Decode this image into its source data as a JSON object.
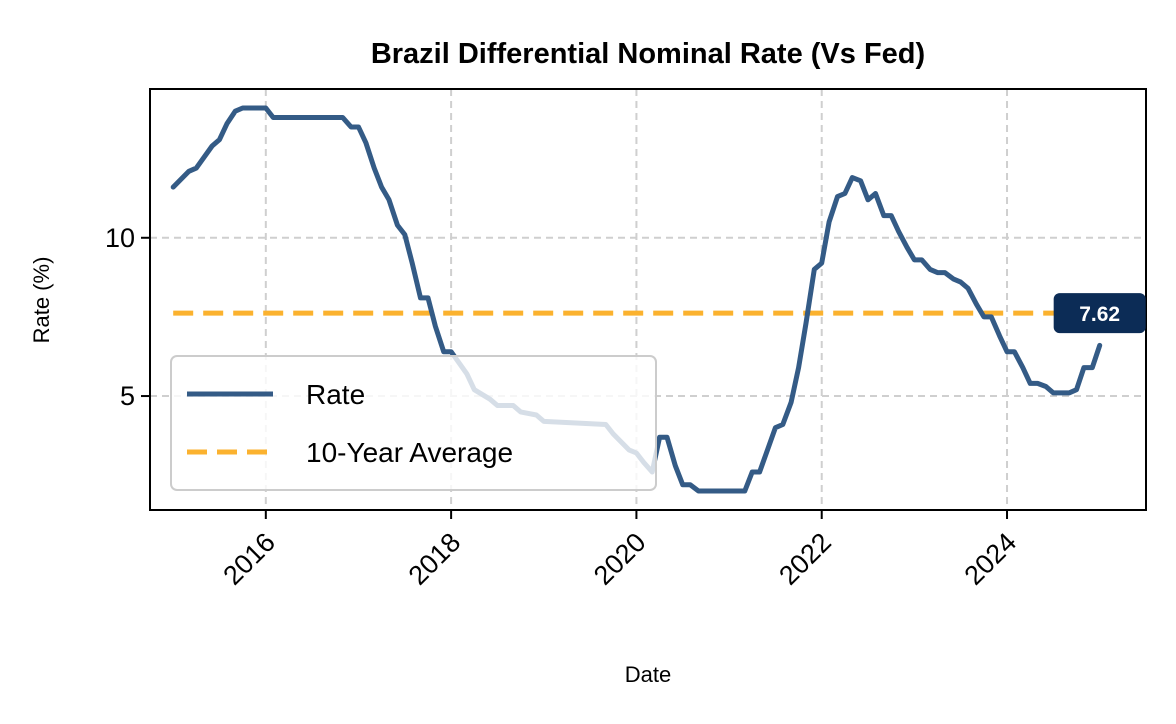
{
  "chart_data": {
    "type": "line",
    "title": "Brazil Differential Nominal Rate (Vs Fed)",
    "xlabel": "Date",
    "ylabel": "Rate (%)",
    "xlim": [
      2014.75,
      2025.5
    ],
    "ylim": [
      1.4,
      14.7
    ],
    "x_ticks": [
      2016,
      2018,
      2020,
      2022,
      2024
    ],
    "x_tick_labels": [
      "2016",
      "2018",
      "2020",
      "2022",
      "2024"
    ],
    "y_ticks": [
      5,
      10
    ],
    "y_tick_labels": [
      "5",
      "10"
    ],
    "grid": true,
    "legend_position": "lower-left",
    "series": [
      {
        "name": "Rate",
        "color": "#345b86",
        "style": "solid",
        "x": [
          2015.0,
          2015.17,
          2015.25,
          2015.42,
          2015.5,
          2015.58,
          2015.67,
          2015.75,
          2016.0,
          2016.08,
          2016.17,
          2016.83,
          2016.92,
          2017.0,
          2017.08,
          2017.17,
          2017.25,
          2017.33,
          2017.42,
          2017.5,
          2017.58,
          2017.67,
          2017.75,
          2017.83,
          2017.92,
          2018.0,
          2018.17,
          2018.25,
          2018.42,
          2018.5,
          2018.67,
          2018.75,
          2018.92,
          2019.0,
          2019.67,
          2019.75,
          2019.92,
          2020.0,
          2020.08,
          2020.17,
          2020.25,
          2020.33,
          2020.42,
          2020.5,
          2020.58,
          2020.67,
          2020.75,
          2021.0,
          2021.17,
          2021.25,
          2021.33,
          2021.5,
          2021.58,
          2021.67,
          2021.75,
          2021.83,
          2021.92,
          2022.0,
          2022.08,
          2022.17,
          2022.25,
          2022.33,
          2022.42,
          2022.5,
          2022.58,
          2022.67,
          2022.75,
          2022.83,
          2022.92,
          2023.0,
          2023.08,
          2023.17,
          2023.25,
          2023.33,
          2023.42,
          2023.5,
          2023.58,
          2023.67,
          2023.75,
          2023.83,
          2023.92,
          2024.0,
          2024.08,
          2024.17,
          2024.25,
          2024.33,
          2024.42,
          2024.5,
          2024.58,
          2024.67,
          2024.75,
          2024.83,
          2024.92,
          2025.0
        ],
        "y": [
          11.6,
          12.1,
          12.2,
          12.9,
          13.1,
          13.6,
          14.0,
          14.1,
          14.1,
          13.8,
          13.8,
          13.8,
          13.5,
          13.5,
          13.0,
          12.2,
          11.6,
          11.2,
          10.4,
          10.1,
          9.2,
          8.1,
          8.1,
          7.2,
          6.4,
          6.4,
          5.7,
          5.2,
          4.9,
          4.7,
          4.7,
          4.5,
          4.4,
          4.2,
          4.1,
          3.8,
          3.3,
          3.2,
          2.9,
          2.6,
          3.7,
          3.7,
          2.8,
          2.2,
          2.2,
          2.0,
          2.0,
          2.0,
          2.0,
          2.6,
          2.6,
          4.0,
          4.1,
          4.8,
          5.9,
          7.3,
          9.0,
          9.2,
          10.5,
          11.3,
          11.4,
          11.9,
          11.8,
          11.2,
          11.4,
          10.7,
          10.7,
          10.2,
          9.7,
          9.3,
          9.3,
          9.0,
          8.9,
          8.9,
          8.7,
          8.6,
          8.4,
          7.9,
          7.5,
          7.5,
          6.9,
          6.4,
          6.4,
          5.9,
          5.4,
          5.4,
          5.3,
          5.1,
          5.1,
          5.1,
          5.2,
          5.9,
          5.9,
          6.6
        ]
      },
      {
        "name": "10-Year Average",
        "color": "#fbb22f",
        "style": "dashed",
        "x": [
          2015.0,
          2025.0
        ],
        "y": [
          7.62,
          7.62
        ]
      }
    ],
    "annotations": [
      {
        "text": "7.62",
        "x": 2025.0,
        "y": 7.62,
        "bg_color": "#0c2c56"
      }
    ]
  }
}
